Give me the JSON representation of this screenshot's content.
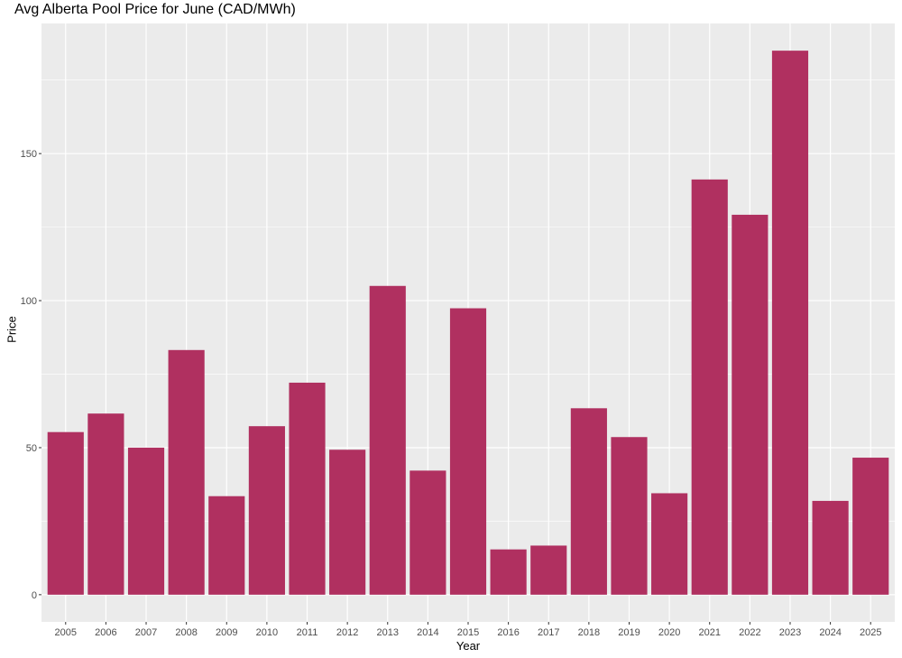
{
  "chart_data": {
    "type": "bar",
    "title": "Avg Alberta Pool Price for June (CAD/MWh)",
    "xlabel": "Year",
    "ylabel": "Price",
    "categories": [
      "2005",
      "2006",
      "2007",
      "2008",
      "2009",
      "2010",
      "2011",
      "2012",
      "2013",
      "2014",
      "2015",
      "2016",
      "2017",
      "2018",
      "2019",
      "2020",
      "2021",
      "2022",
      "2023",
      "2024",
      "2025"
    ],
    "values": [
      55.3,
      61.6,
      50.0,
      83.2,
      33.5,
      57.3,
      72.1,
      49.3,
      105.0,
      42.2,
      97.4,
      15.4,
      16.7,
      63.4,
      53.6,
      34.5,
      141.2,
      129.2,
      185.0,
      31.9,
      46.6
    ],
    "ylim": [
      -9.25,
      194.25
    ],
    "yticks": [
      0,
      50,
      100,
      150
    ],
    "grid": true,
    "bar_color": "#B03060",
    "panel_color": "#EBEBEB"
  }
}
